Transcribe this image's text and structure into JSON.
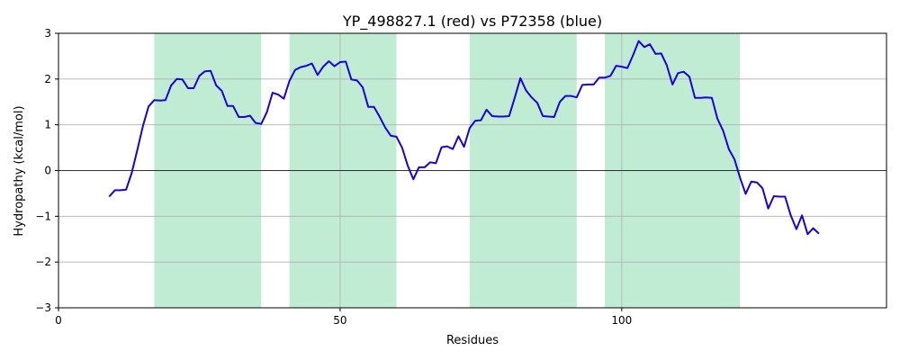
{
  "chart_data": {
    "type": "line",
    "title": "YP_498827.1 (red) vs P72358 (blue)",
    "xlabel": "Residues",
    "ylabel": "Hydropathy (kcal/mol)",
    "xlim": [
      0,
      147
    ],
    "ylim": [
      -3,
      3
    ],
    "xticks": [
      0,
      50,
      100
    ],
    "yticks": [
      -3,
      -2,
      -1,
      0,
      1,
      2,
      3
    ],
    "grid": true,
    "zero_line": true,
    "colors": {
      "series": "#1a00e0",
      "band": "#c0ecd4",
      "grid": "#b0b0b0"
    },
    "bands": [
      [
        17,
        36
      ],
      [
        41,
        60
      ],
      [
        73,
        92
      ],
      [
        97,
        121
      ]
    ],
    "series": [
      {
        "color": "#1a00e0",
        "x": [
          9,
          10,
          11,
          12,
          13,
          14,
          15,
          16,
          17,
          18,
          19,
          20,
          21,
          22,
          23,
          24,
          25,
          26,
          27,
          28,
          29,
          30,
          31,
          32,
          33,
          34,
          35,
          36,
          37,
          38,
          39,
          40,
          41,
          42,
          43,
          44,
          45,
          46,
          47,
          48,
          49,
          50,
          51,
          52,
          53,
          54,
          55,
          56,
          57,
          58,
          59,
          60,
          61,
          62,
          63,
          64,
          65,
          66,
          67,
          68,
          69,
          70,
          71,
          72,
          73,
          74,
          75,
          76,
          77,
          78,
          79,
          80,
          81,
          82,
          83,
          84,
          85,
          86,
          87,
          88,
          89,
          90,
          91,
          92,
          93,
          94,
          95,
          96,
          97,
          98,
          99,
          100,
          101,
          102,
          103,
          104,
          105,
          106,
          107,
          108,
          109,
          110,
          111,
          112,
          113,
          114,
          115,
          116,
          117,
          118,
          119,
          120,
          121,
          122,
          123,
          124,
          125,
          126,
          127,
          128,
          129,
          130,
          131,
          132,
          133,
          134,
          135
        ],
        "y": [
          -0.57,
          -0.43,
          -0.43,
          -0.42,
          -0.05,
          0.45,
          0.98,
          1.4,
          1.54,
          1.53,
          1.54,
          1.86,
          2.0,
          1.99,
          1.8,
          1.8,
          2.07,
          2.17,
          2.18,
          1.86,
          1.74,
          1.41,
          1.41,
          1.17,
          1.17,
          1.2,
          1.04,
          1.02,
          1.28,
          1.7,
          1.66,
          1.57,
          1.96,
          2.2,
          2.26,
          2.29,
          2.34,
          2.09,
          2.27,
          2.39,
          2.28,
          2.37,
          2.38,
          1.99,
          1.97,
          1.82,
          1.39,
          1.39,
          1.18,
          0.94,
          0.76,
          0.74,
          0.5,
          0.11,
          -0.19,
          0.07,
          0.07,
          0.18,
          0.16,
          0.51,
          0.53,
          0.47,
          0.75,
          0.52,
          0.93,
          1.09,
          1.1,
          1.33,
          1.19,
          1.18,
          1.18,
          1.19,
          1.59,
          2.02,
          1.75,
          1.6,
          1.48,
          1.19,
          1.18,
          1.17,
          1.5,
          1.63,
          1.63,
          1.6,
          1.87,
          1.88,
          1.88,
          2.03,
          2.03,
          2.07,
          2.29,
          2.27,
          2.24,
          2.52,
          2.83,
          2.7,
          2.76,
          2.55,
          2.56,
          2.3,
          1.88,
          2.13,
          2.16,
          2.05,
          1.59,
          1.59,
          1.6,
          1.59,
          1.13,
          0.87,
          0.47,
          0.25,
          -0.16,
          -0.51,
          -0.24,
          -0.26,
          -0.39,
          -0.83,
          -0.56,
          -0.57,
          -0.57,
          -0.98,
          -1.28,
          -0.98,
          -1.39,
          -1.26,
          -1.38
        ]
      }
    ]
  }
}
